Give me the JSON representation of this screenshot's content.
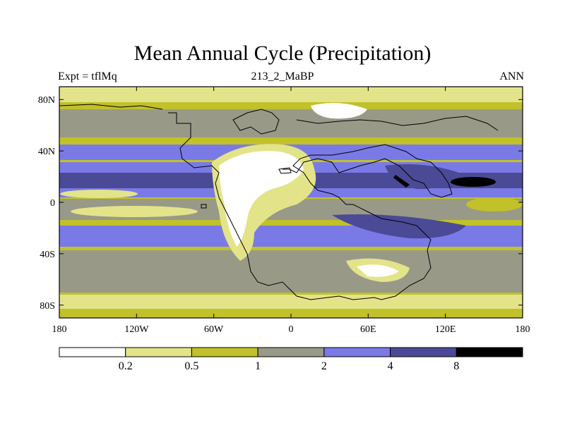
{
  "title": "Mean Annual Cycle (Precipitation)",
  "subtitle_left": "Expt = tflMq",
  "subtitle_center": "213_2_MaBP",
  "subtitle_right": "ANN",
  "chart_data": {
    "type": "heatmap",
    "title": "Mean Annual Cycle (Precipitation)",
    "projection": "cylindrical equidistant",
    "lon_range": [
      -180,
      180
    ],
    "lat_range": [
      -90,
      90
    ],
    "x_ticks": [
      {
        "value": -180,
        "label": "180"
      },
      {
        "value": -120,
        "label": "120W"
      },
      {
        "value": -60,
        "label": "60W"
      },
      {
        "value": 0,
        "label": "0"
      },
      {
        "value": 60,
        "label": "60E"
      },
      {
        "value": 120,
        "label": "120E"
      },
      {
        "value": 180,
        "label": "180"
      }
    ],
    "y_ticks": [
      {
        "value": 80,
        "label": "80N"
      },
      {
        "value": 40,
        "label": "40N"
      },
      {
        "value": 0,
        "label": "0"
      },
      {
        "value": -40,
        "label": "40S"
      },
      {
        "value": -80,
        "label": "80S"
      }
    ],
    "colorbar": {
      "levels": [
        "0.2",
        "0.5",
        "1",
        "2",
        "4",
        "8"
      ],
      "colors": [
        "#ffffff",
        "#e3e38a",
        "#c1c12a",
        "#999988",
        "#7a7ae6",
        "#4a4a96",
        "#000000"
      ]
    }
  }
}
